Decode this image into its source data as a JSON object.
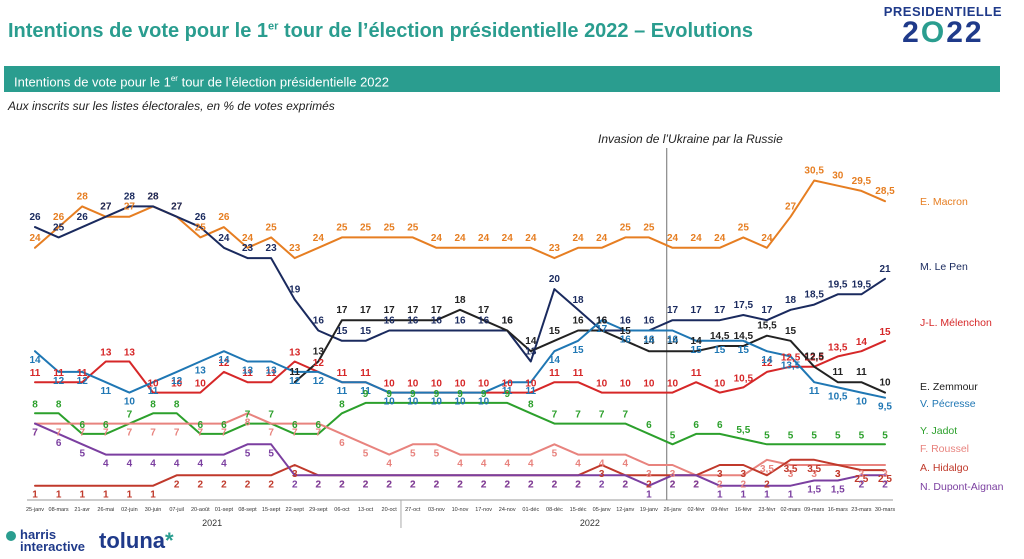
{
  "header": {
    "title_main": "Intentions de vote pour le 1",
    "title_sup": "er",
    "title_rest": " tour de l’élection présidentielle 2022 – Evolutions",
    "banner_main": "Intentions de vote pour le 1",
    "banner_sup": "er",
    "banner_rest": " tour de l’élection présidentielle 2022",
    "subtitle": "Aux inscrits sur les listes électorales, en % de votes exprimés",
    "logo_line1": "PRESIDENTIELLE",
    "logo_line2_a": "2",
    "logo_line2_o": "O",
    "logo_line2_b": "22"
  },
  "footer": {
    "harris_line1": "harris",
    "harris_line2": "interactive",
    "toluna": "toluna",
    "toluna_star": "*"
  },
  "chart_data": {
    "type": "line",
    "title": "Intentions de vote pour le 1er tour de l’élection présidentielle 2022 – Evolutions",
    "annotation": "Invasion de l’Ukraine par la Russie",
    "annotation_index": 26,
    "years": [
      {
        "label": "2021",
        "start": 0,
        "end": 15
      },
      {
        "label": "2022",
        "start": 16,
        "end": 31
      }
    ],
    "categories": [
      "25-janv",
      "08-mars",
      "21-avr",
      "26-mai",
      "02-juin",
      "30-juin",
      "07-juil",
      "20-août",
      "01-sept",
      "08-sept",
      "15-sept",
      "22-sept",
      "29-sept",
      "06-oct",
      "13-oct",
      "20-oct",
      "27-oct",
      "03-nov",
      "10-nov",
      "17-nov",
      "24-nov",
      "01-déc",
      "08-déc",
      "15-déc",
      "05-janv",
      "12-janv",
      "19-janv",
      "26-janv",
      "02-févr",
      "09-févr",
      "16-févr",
      "23-févr",
      "02-mars",
      "09-mars",
      "16-mars",
      "23-mars",
      "30-mars"
    ],
    "ylim": [
      0,
      32
    ],
    "series": [
      {
        "name": "E. Macron",
        "color": "#e67e22",
        "values": [
          24,
          26,
          28,
          27,
          27,
          28,
          27,
          25,
          26,
          24,
          25,
          23,
          24,
          25,
          25,
          25,
          25,
          24,
          24,
          24,
          24,
          24,
          23,
          24,
          24,
          25,
          25,
          24,
          24,
          24,
          25,
          24,
          27,
          30.5,
          30,
          29.5,
          28.5
        ]
      },
      {
        "name": "M. Le Pen",
        "color": "#1a2a5e",
        "values": [
          26,
          25,
          26,
          27,
          28,
          28,
          27,
          26,
          24,
          23,
          23,
          19,
          16,
          15,
          15,
          16,
          16,
          16,
          16,
          16,
          16,
          13,
          20,
          18,
          16,
          16,
          16,
          17,
          17,
          17,
          17.5,
          17,
          18,
          18.5,
          19.5,
          19.5,
          21
        ]
      },
      {
        "name": "J-L. Mélenchon",
        "color": "#d62728",
        "values": [
          11,
          11,
          11,
          13,
          13,
          10,
          10,
          10,
          12,
          11,
          11,
          13,
          12,
          11,
          11,
          10,
          10,
          10,
          10,
          10,
          10,
          10,
          11,
          11,
          10,
          10,
          10,
          10,
          11,
          10,
          10.5,
          12,
          12.5,
          12.5,
          13.5,
          14,
          15
        ]
      },
      {
        "name": "E. Zemmour",
        "color": "#222222",
        "values": [
          null,
          null,
          null,
          null,
          null,
          null,
          null,
          null,
          null,
          null,
          null,
          11,
          13,
          17,
          17,
          17,
          17,
          17,
          18,
          17,
          16,
          14,
          15,
          16,
          16,
          15,
          14,
          14,
          14,
          14.5,
          14.5,
          15.5,
          15,
          12.5,
          11,
          11,
          10
        ]
      },
      {
        "name": "V. Pécresse",
        "color": "#1f77b4",
        "values": [
          14,
          12,
          12,
          11,
          10,
          11,
          12,
          13,
          14,
          13,
          13,
          12,
          12,
          11,
          11,
          10,
          10,
          10,
          10,
          10,
          11,
          11,
          14,
          15,
          17,
          16,
          16,
          16,
          15,
          15,
          15,
          14,
          13.5,
          11,
          10.5,
          10,
          9.5
        ]
      },
      {
        "name": "Y. Jadot",
        "color": "#2ca02c",
        "values": [
          8,
          8,
          6,
          6,
          7,
          8,
          8,
          6,
          6,
          7,
          7,
          6,
          6,
          8,
          9,
          9,
          9,
          9,
          9,
          9,
          9,
          8,
          7,
          7,
          7,
          7,
          6,
          5,
          6,
          6,
          5.5,
          5,
          5,
          5,
          5,
          5,
          5
        ]
      },
      {
        "name": "F. Roussel",
        "color": "#e8837e",
        "values": [
          7,
          7,
          7,
          7,
          7,
          7,
          7,
          7,
          7,
          8,
          7,
          7,
          7,
          6,
          5,
          4,
          5,
          5,
          4,
          4,
          4,
          4,
          5,
          4,
          4,
          4,
          3,
          3,
          2,
          2,
          2,
          3.5,
          3,
          3,
          3,
          3,
          3
        ]
      },
      {
        "name": "A. Hidalgo",
        "color": "#c0392b",
        "values": [
          1,
          1,
          1,
          1,
          1,
          1,
          2,
          2,
          2,
          2,
          2,
          3,
          2,
          2,
          2,
          2,
          2,
          2,
          2,
          2,
          2,
          2,
          2,
          2,
          3,
          2,
          2,
          2,
          2,
          3,
          3,
          2,
          3.5,
          3.5,
          3,
          2.5,
          2.5
        ]
      },
      {
        "name": "N. Dupont-Aignan",
        "color": "#7b3fa0",
        "values": [
          7,
          6,
          5,
          4,
          4,
          4,
          4,
          4,
          4,
          5,
          5,
          2,
          2,
          2,
          2,
          2,
          2,
          2,
          2,
          2,
          2,
          2,
          2,
          2,
          2,
          2,
          1,
          2,
          2,
          1,
          1,
          1,
          1,
          1.5,
          1.5,
          2,
          2
        ]
      }
    ]
  }
}
